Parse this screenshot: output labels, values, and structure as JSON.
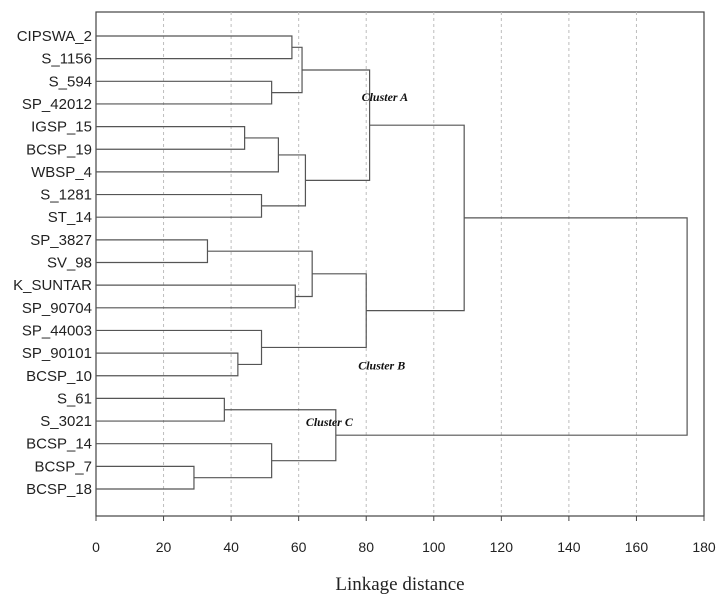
{
  "chart_data": {
    "type": "dendrogram",
    "xlabel": "Linkage distance",
    "xlim": [
      0,
      180
    ],
    "x_ticks": [
      0,
      20,
      40,
      60,
      80,
      100,
      120,
      140,
      160,
      180
    ],
    "grid": "vertical dashed",
    "leaves": [
      "CIPSWA_2",
      "S_1156",
      "S_594",
      "SP_42012",
      "IGSP_15",
      "BCSP_19",
      "WBSP_4",
      "S_1281",
      "ST_14",
      "SP_3827",
      "SV_98",
      "K_SUNTAR",
      "SP_90704",
      "SP_44003",
      "SP_90101",
      "BCSP_10",
      "S_61",
      "S_3021",
      "BCSP_14",
      "BCSP_7",
      "BCSP_18"
    ],
    "merges": [
      {
        "id": "m1",
        "left": "L0",
        "right": "L1",
        "height": 58
      },
      {
        "id": "m2",
        "left": "L2",
        "right": "L3",
        "height": 52
      },
      {
        "id": "m3",
        "left": "m1",
        "right": "m2",
        "height": 61
      },
      {
        "id": "m4",
        "left": "L4",
        "right": "L5",
        "height": 44
      },
      {
        "id": "m5",
        "left": "m4",
        "right": "L6",
        "height": 54
      },
      {
        "id": "m6",
        "left": "L7",
        "right": "L8",
        "height": 49
      },
      {
        "id": "m7",
        "left": "m5",
        "right": "m6",
        "height": 62
      },
      {
        "id": "m8",
        "left": "m3",
        "right": "m7",
        "height": 81
      },
      {
        "id": "m9",
        "left": "L9",
        "right": "L10",
        "height": 33
      },
      {
        "id": "m10",
        "left": "L11",
        "right": "L12",
        "height": 59
      },
      {
        "id": "m11",
        "left": "m9",
        "right": "m10",
        "height": 64
      },
      {
        "id": "m12",
        "left": "L14",
        "right": "L15",
        "height": 42
      },
      {
        "id": "m13",
        "left": "L13",
        "right": "m12",
        "height": 49
      },
      {
        "id": "m14",
        "left": "m11",
        "right": "m13",
        "height": 80
      },
      {
        "id": "m15",
        "left": "m8",
        "right": "m14",
        "height": 109
      },
      {
        "id": "m16",
        "left": "L16",
        "right": "L17",
        "height": 38
      },
      {
        "id": "m17",
        "left": "L19",
        "right": "L20",
        "height": 29
      },
      {
        "id": "m18",
        "left": "L18",
        "right": "m17",
        "height": 52
      },
      {
        "id": "m19",
        "left": "m16",
        "right": "m18",
        "height": 71
      },
      {
        "id": "m20",
        "left": "m15",
        "right": "m19",
        "height": 175
      }
    ],
    "annotations": [
      {
        "text": "Cluster A",
        "node": "m8"
      },
      {
        "text": "Cluster B",
        "node": "m14"
      },
      {
        "text": "Cluster C",
        "node": "m19"
      }
    ]
  }
}
